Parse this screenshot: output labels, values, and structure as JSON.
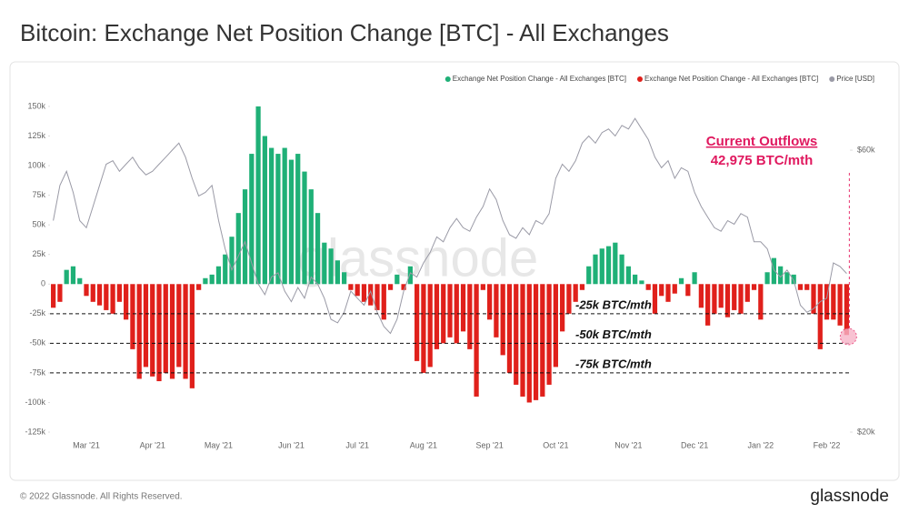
{
  "chart_data": {
    "type": "bar",
    "title": "Bitcoin: Exchange Net Position Change [BTC] - All Exchanges",
    "categories": [
      null,
      null,
      null,
      null,
      null,
      "Mar '21",
      null,
      null,
      null,
      null,
      null,
      null,
      null,
      null,
      null,
      "Apr '21",
      null,
      null,
      null,
      null,
      null,
      null,
      null,
      null,
      null,
      "May '21",
      null,
      null,
      null,
      null,
      null,
      null,
      null,
      null,
      null,
      null,
      "Jun '21",
      null,
      null,
      null,
      null,
      null,
      null,
      null,
      null,
      null,
      "Jul '21",
      null,
      null,
      null,
      null,
      null,
      null,
      null,
      null,
      null,
      "Aug '21",
      null,
      null,
      null,
      null,
      null,
      null,
      null,
      null,
      null,
      "Sep '21",
      null,
      null,
      null,
      null,
      null,
      null,
      null,
      null,
      null,
      "Oct '21",
      null,
      null,
      null,
      null,
      null,
      null,
      null,
      null,
      null,
      null,
      "Nov '21",
      null,
      null,
      null,
      null,
      null,
      null,
      null,
      null,
      null,
      "Dec '21",
      null,
      null,
      null,
      null,
      null,
      null,
      null,
      null,
      null,
      "Jan '22",
      null,
      null,
      null,
      null,
      null,
      null,
      null,
      null,
      null,
      "Feb '22",
      null,
      null,
      null
    ],
    "series": [
      {
        "name": "Exchange Net Position Change - All Exchanges [BTC]",
        "color": "#1fb077",
        "values": [
          null,
          null,
          12000,
          15000,
          5000,
          null,
          null,
          null,
          null,
          null,
          null,
          null,
          null,
          null,
          null,
          null,
          null,
          null,
          null,
          null,
          null,
          null,
          null,
          5000,
          8000,
          15000,
          25000,
          40000,
          60000,
          80000,
          110000,
          150000,
          125000,
          115000,
          110000,
          115000,
          105000,
          110000,
          95000,
          80000,
          60000,
          35000,
          30000,
          20000,
          10000,
          null,
          null,
          null,
          null,
          null,
          null,
          null,
          8000,
          null,
          15000,
          null,
          null,
          null,
          null,
          null,
          null,
          null,
          null,
          null,
          null,
          null,
          null,
          null,
          null,
          null,
          null,
          null,
          null,
          null,
          null,
          null,
          null,
          null,
          null,
          null,
          null,
          15000,
          25000,
          30000,
          32000,
          35000,
          25000,
          15000,
          8000,
          3000,
          null,
          null,
          null,
          null,
          null,
          5000,
          null,
          10000,
          null,
          null,
          null,
          null,
          null,
          null,
          null,
          null,
          null,
          null,
          10000,
          22000,
          15000,
          10000,
          8000,
          null,
          null,
          null,
          null,
          null,
          null,
          null,
          null
        ]
      },
      {
        "name": "Exchange Net Position Change - All Exchanges [BTC]",
        "color": "#e0201b",
        "values": [
          -20000,
          -15000,
          null,
          null,
          null,
          -10000,
          -15000,
          -18000,
          -22000,
          -25000,
          -15000,
          -30000,
          -55000,
          -80000,
          -70000,
          -78000,
          -82000,
          -75000,
          -80000,
          -70000,
          -80000,
          -88000,
          -5000,
          null,
          null,
          null,
          null,
          null,
          null,
          null,
          null,
          null,
          null,
          null,
          null,
          null,
          null,
          null,
          null,
          null,
          null,
          null,
          null,
          null,
          null,
          -5000,
          -10000,
          -15000,
          -18000,
          -22000,
          -30000,
          -5000,
          null,
          -5000,
          null,
          -65000,
          -75000,
          -70000,
          -55000,
          -50000,
          -45000,
          -50000,
          -40000,
          -55000,
          -95000,
          -5000,
          -30000,
          -45000,
          -60000,
          -75000,
          -85000,
          -95000,
          -100000,
          -98000,
          -95000,
          -85000,
          -70000,
          -40000,
          -25000,
          -15000,
          -5000,
          null,
          null,
          null,
          null,
          null,
          null,
          null,
          null,
          null,
          -5000,
          -25000,
          -10000,
          -15000,
          -8000,
          null,
          -10000,
          null,
          -20000,
          -35000,
          -25000,
          -20000,
          -28000,
          -22000,
          -25000,
          -15000,
          -5000,
          -30000,
          null,
          null,
          null,
          null,
          null,
          -5000,
          -5000,
          -25000,
          -55000,
          -30000,
          -30000,
          -35000,
          -43000
        ]
      },
      {
        "name": "Price [USD]",
        "type": "line",
        "axis": "y2",
        "color": "#9a9aa6",
        "values": [
          50000,
          55000,
          57000,
          54000,
          50000,
          49000,
          52000,
          55000,
          58000,
          58500,
          57000,
          58000,
          59000,
          57500,
          56500,
          57000,
          58000,
          59000,
          60000,
          61000,
          59000,
          56000,
          53500,
          54000,
          55000,
          50000,
          46000,
          43000,
          45000,
          47000,
          44000,
          41000,
          39500,
          42000,
          42600,
          40000,
          38500,
          40500,
          39000,
          42000,
          41000,
          39000,
          36000,
          35500,
          37000,
          40000,
          39000,
          38000,
          40000,
          37000,
          35000,
          34000,
          36000,
          40000,
          42600,
          42000,
          44000,
          45500,
          47700,
          47000,
          49000,
          50300,
          49000,
          48500,
          50500,
          52000,
          54500,
          53000,
          50000,
          48000,
          47500,
          49000,
          48000,
          50000,
          49500,
          51000,
          56000,
          58000,
          57000,
          58500,
          61000,
          62000,
          61000,
          62500,
          63000,
          62000,
          63500,
          63000,
          64500,
          63000,
          61500,
          59000,
          57500,
          58500,
          56000,
          57500,
          57000,
          54000,
          52000,
          50500,
          49000,
          48500,
          50000,
          49500,
          51000,
          50500,
          47000,
          47000,
          46000,
          43000,
          42000,
          43000,
          41500,
          38000,
          37000,
          37500,
          38500,
          39000,
          44000,
          43500,
          42500
        ]
      }
    ],
    "ylim": [
      -125000,
      150000
    ],
    "yticks": [
      {
        "value": -125000,
        "label": "-125k"
      },
      {
        "value": -100000,
        "label": "-100k"
      },
      {
        "value": -75000,
        "label": "-75k"
      },
      {
        "value": -50000,
        "label": "-50k"
      },
      {
        "value": -25000,
        "label": "-25k"
      },
      0,
      {
        "value": 25000,
        "label": "25k"
      },
      {
        "value": 50000,
        "label": "50k"
      },
      {
        "value": 75000,
        "label": "75k"
      },
      {
        "value": 100000,
        "label": "100k"
      },
      {
        "value": 125000,
        "label": "125k"
      },
      {
        "value": 150000,
        "label": "150k"
      }
    ],
    "y2lim": [
      20000,
      66200
    ],
    "y2ticks": [
      {
        "value": 20000,
        "label": "$20k"
      },
      {
        "value": 60000,
        "label": "$60k"
      }
    ],
    "legend": "top-right",
    "reference_lines": [
      {
        "value": -25000,
        "label": "-25k BTC/mth"
      },
      {
        "value": -50000,
        "label": "-50k BTC/mth"
      },
      {
        "value": -75000,
        "label": "-75k BTC/mth"
      }
    ],
    "annotations": [
      "Current Outflows",
      "42,975 BTC/mth"
    ],
    "watermark": "glassnode"
  },
  "footer": {
    "copyright": "© 2022 Glassnode. All Rights Reserved.",
    "logo": "glassnode"
  }
}
